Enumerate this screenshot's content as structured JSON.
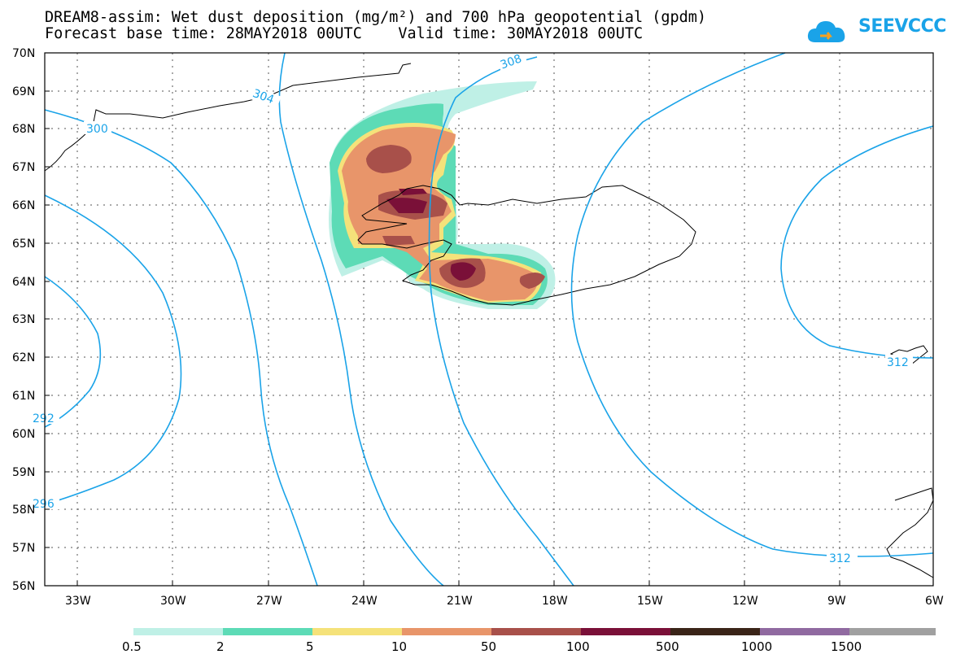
{
  "header": {
    "line1": "DREAM8-assim: Wet dust deposition (mg/m²) and 700 hPa geopotential (gpdm)",
    "line2": "Forecast base time: 28MAY2018 00UTC    Valid time: 30MAY2018 00UTC",
    "logo_text": "SEEVCCC"
  },
  "map": {
    "lat_labels": [
      "70N",
      "69N",
      "68N",
      "67N",
      "66N",
      "65N",
      "64N",
      "63N",
      "62N",
      "61N",
      "60N",
      "59N",
      "58N",
      "57N",
      "56N"
    ],
    "lon_labels": [
      "33W",
      "30W",
      "27W",
      "24W",
      "21W",
      "18W",
      "15W",
      "12W",
      "9W",
      "6W"
    ],
    "contour_labels": [
      "300",
      "304",
      "308",
      "292",
      "296",
      "312",
      "312"
    ],
    "contour_color": "#1aa3e8",
    "grid": "dotted"
  },
  "colorbar": {
    "labels": [
      "0.5",
      "2",
      "5",
      "10",
      "50",
      "100",
      "500",
      "1000",
      "1500"
    ],
    "colors": [
      "#bff0e6",
      "#5ddbb6",
      "#f5e27a",
      "#e8956a",
      "#a8504a",
      "#7a1038",
      "#3a2418",
      "#906aa0",
      "#a0a0a0"
    ]
  }
}
